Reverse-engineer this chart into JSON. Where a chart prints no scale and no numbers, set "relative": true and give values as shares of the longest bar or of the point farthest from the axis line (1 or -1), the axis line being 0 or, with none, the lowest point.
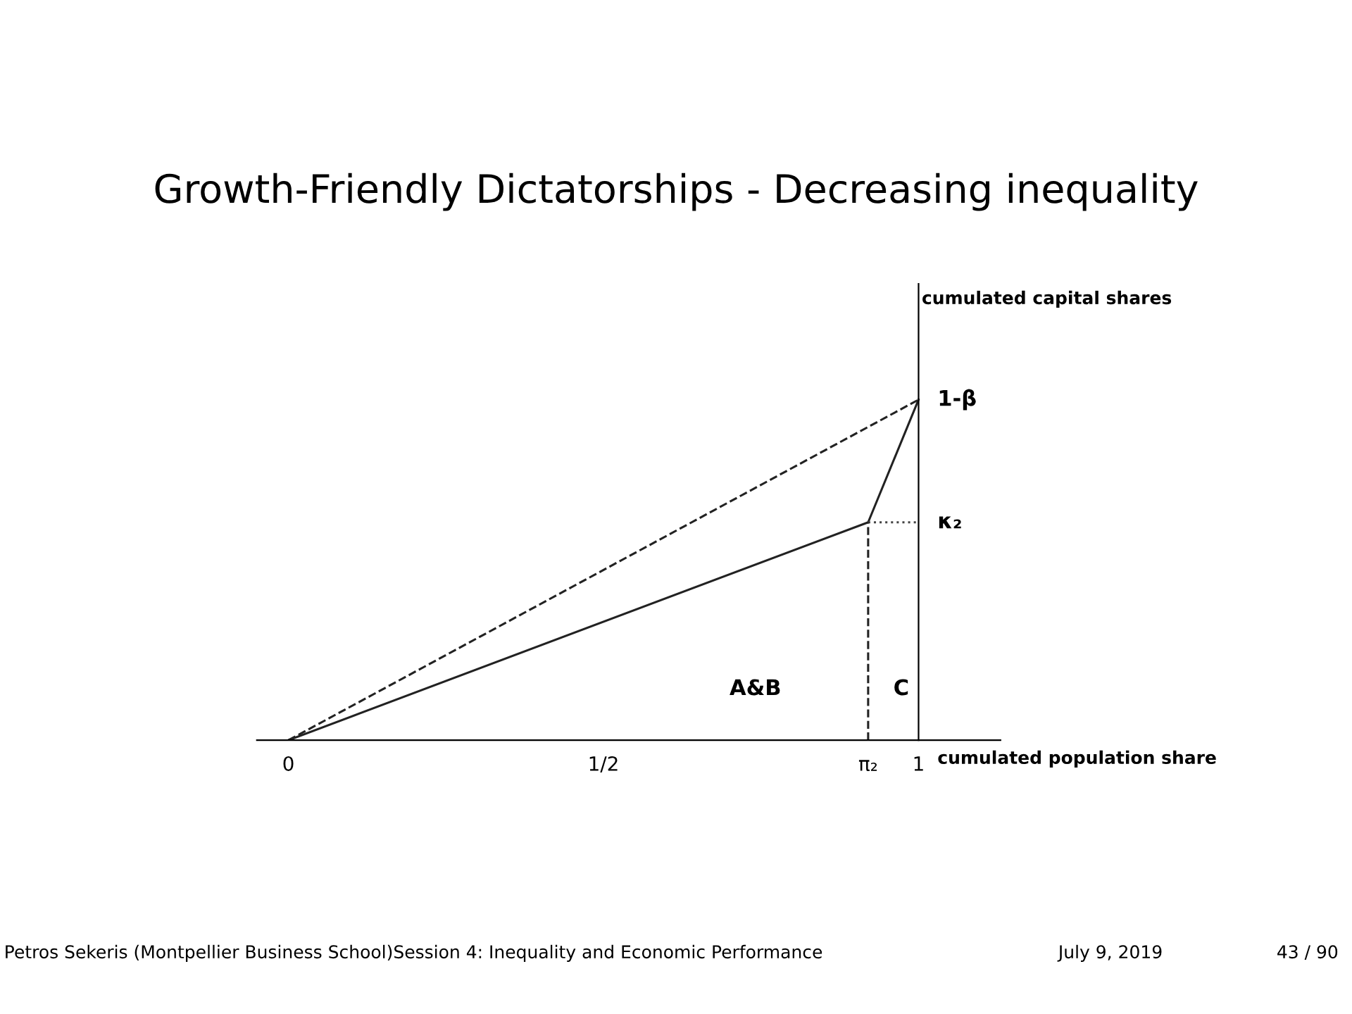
{
  "chart_data": {
    "type": "line",
    "title": "Growth-Friendly Dictatorships - Decreasing inequality",
    "xlabel": "cumulated population share",
    "relative": true,
    "xlim": [
      -0.05,
      1.13
    ],
    "xticks": [
      0,
      {
        "value": 0.5,
        "label": "1/2"
      },
      {
        "value": 0.92,
        "label": "π₂"
      },
      1
    ],
    "series": [
      {
        "color": "#222222",
        "x": [
          0,
          0.92,
          1
        ],
        "values": [
          0,
          0.64,
          1
        ],
        "line_style": "solid"
      },
      {
        "color": "#222222",
        "x": [
          0,
          1
        ],
        "values": [
          0,
          1
        ],
        "line_style": "dashed"
      },
      {
        "color": "#444444",
        "x": [
          0.92,
          1
        ],
        "values": [
          0.64,
          0.64
        ],
        "line_style": "dotted"
      },
      {
        "color": "#222222",
        "x": [
          0.92,
          0.92
        ],
        "values": [
          0,
          0.64
        ],
        "line_style": "dashed"
      }
    ],
    "annotations": [
      {
        "text": "1-β",
        "x": 1,
        "y": 1
      },
      {
        "text": "κ₂",
        "x": 1,
        "y": 0.64
      },
      "cumulated capital shares",
      "A&B",
      "C",
      "Petros Sekeris (Montpellier Business School)Session 4: Inequality and Economic Performance",
      "July 9, 2019",
      "43 / 90"
    ],
    "legend": false,
    "marker": "none"
  }
}
